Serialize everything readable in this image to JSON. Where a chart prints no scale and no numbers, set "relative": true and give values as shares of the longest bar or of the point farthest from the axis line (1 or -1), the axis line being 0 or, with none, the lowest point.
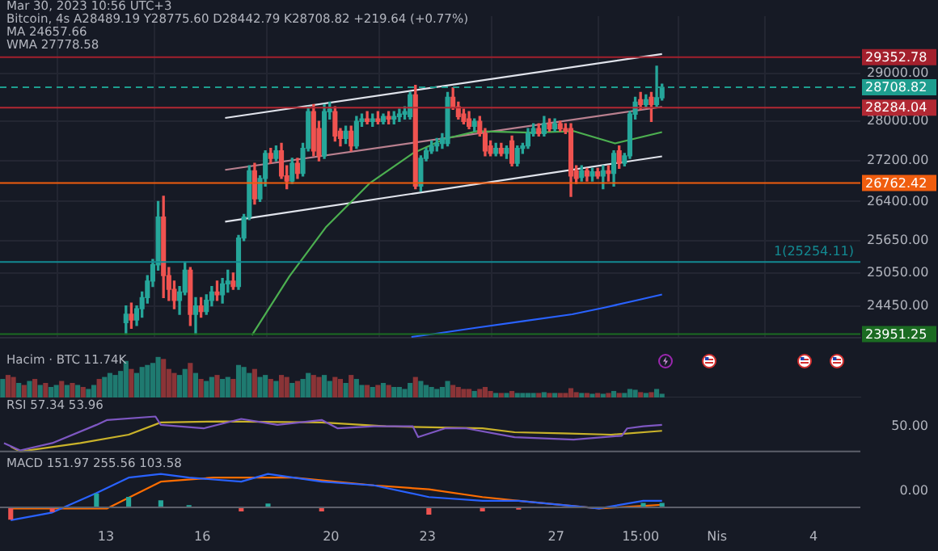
{
  "chart_data": [
    {
      "type": "candlestick",
      "log": true,
      "grid": true,
      "tick_labels": "y",
      "annotations": [
        "Mar 30, 2023 10:56 UTC+3",
        "Bitcoin, 4s  A28489.19 Y28775.60 D28442.79 K28708.82 +219.64 (+0.77%)",
        "MA 24657.66",
        "WMA 27778.58"
      ],
      "xlim": [
        "2023-03-09T17:00",
        "2023-04-05T11:00"
      ],
      "xticks": [
        {
          "value": "2023-03-13",
          "label": null
        },
        {
          "value": "2023-03-16",
          "label": null
        },
        {
          "value": "2023-03-20",
          "label": null
        },
        {
          "value": "2023-03-23",
          "label": null
        },
        {
          "value": "2023-03-27",
          "label": null
        },
        {
          "value": "2023-03-29T15:00",
          "label": null
        },
        {
          "value": "2023-04-01",
          "label": null
        },
        {
          "value": "2023-04-04",
          "label": null
        }
      ],
      "ylim": [
        23880,
        30250
      ],
      "yticks": [
        {
          "value": 24450,
          "label": "24450.00"
        },
        {
          "value": 25050,
          "label": "25050.00"
        },
        {
          "value": 25650,
          "label": "25650.00"
        },
        {
          "value": 26400,
          "label": "26400.00"
        },
        {
          "value": 27200,
          "label": "27200.00"
        },
        {
          "value": 28000,
          "label": "28000.00"
        },
        {
          "value": 29000,
          "label": "29000.00"
        }
      ],
      "x": [
        "2023-03-13T15:00",
        "2023-03-13T19:00",
        "2023-03-13T23:00",
        "2023-03-14T03:00",
        "2023-03-14T07:00",
        "2023-03-14T11:00",
        "2023-03-14T15:00",
        "2023-03-14T19:00",
        "2023-03-14T23:00",
        "2023-03-15T03:00",
        "2023-03-15T07:00",
        "2023-03-15T11:00",
        "2023-03-15T15:00",
        "2023-03-15T19:00",
        "2023-03-15T23:00",
        "2023-03-16T03:00",
        "2023-03-16T07:00",
        "2023-03-16T11:00",
        "2023-03-16T15:00",
        "2023-03-16T19:00",
        "2023-03-16T23:00",
        "2023-03-17T03:00",
        "2023-03-17T07:00",
        "2023-03-17T11:00",
        "2023-03-17T15:00",
        "2023-03-17T19:00",
        "2023-03-17T23:00",
        "2023-03-18T03:00",
        "2023-03-18T07:00",
        "2023-03-18T11:00",
        "2023-03-18T15:00",
        "2023-03-18T19:00",
        "2023-03-18T23:00",
        "2023-03-19T03:00",
        "2023-03-19T07:00",
        "2023-03-19T11:00",
        "2023-03-19T15:00",
        "2023-03-19T19:00",
        "2023-03-19T23:00",
        "2023-03-20T03:00",
        "2023-03-20T07:00",
        "2023-03-20T11:00",
        "2023-03-20T15:00",
        "2023-03-20T19:00",
        "2023-03-20T23:00",
        "2023-03-21T03:00",
        "2023-03-21T07:00",
        "2023-03-21T11:00",
        "2023-03-21T15:00",
        "2023-03-21T19:00",
        "2023-03-21T23:00",
        "2023-03-22T03:00",
        "2023-03-22T07:00",
        "2023-03-22T11:00",
        "2023-03-22T15:00",
        "2023-03-22T19:00",
        "2023-03-22T23:00",
        "2023-03-23T03:00",
        "2023-03-23T07:00",
        "2023-03-23T11:00",
        "2023-03-23T15:00",
        "2023-03-23T19:00",
        "2023-03-23T23:00",
        "2023-03-24T03:00",
        "2023-03-24T07:00",
        "2023-03-24T11:00",
        "2023-03-24T15:00",
        "2023-03-24T19:00",
        "2023-03-24T23:00",
        "2023-03-25T03:00",
        "2023-03-25T07:00",
        "2023-03-25T11:00",
        "2023-03-25T15:00",
        "2023-03-25T19:00",
        "2023-03-25T23:00",
        "2023-03-26T03:00",
        "2023-03-26T07:00",
        "2023-03-26T11:00",
        "2023-03-26T15:00",
        "2023-03-26T19:00",
        "2023-03-26T23:00",
        "2023-03-27T03:00",
        "2023-03-27T07:00",
        "2023-03-27T11:00",
        "2023-03-27T15:00",
        "2023-03-27T19:00",
        "2023-03-27T23:00",
        "2023-03-28T03:00",
        "2023-03-28T07:00",
        "2023-03-28T11:00",
        "2023-03-28T15:00",
        "2023-03-28T19:00",
        "2023-03-28T23:00",
        "2023-03-29T03:00",
        "2023-03-29T07:00",
        "2023-03-29T11:00",
        "2023-03-29T15:00",
        "2023-03-29T19:00",
        "2023-03-29T23:00",
        "2023-03-30T03:00",
        "2023-03-30T07:00"
      ],
      "ohlc": [
        [
          24150,
          24450,
          23950,
          24300
        ],
        [
          24300,
          24500,
          24050,
          24200
        ],
        [
          24200,
          24450,
          24100,
          24400
        ],
        [
          24400,
          24700,
          24250,
          24600
        ],
        [
          24600,
          25000,
          24500,
          24900
        ],
        [
          24900,
          25300,
          24800,
          25200
        ],
        [
          25200,
          26400,
          25100,
          26100
        ],
        [
          26100,
          26500,
          24600,
          25000
        ],
        [
          25000,
          25150,
          24550,
          24750
        ],
        [
          24750,
          24900,
          24400,
          24550
        ],
        [
          24550,
          24800,
          24300,
          24700
        ],
        [
          24700,
          25250,
          24650,
          25100
        ],
        [
          25100,
          25150,
          24100,
          24300
        ],
        [
          24300,
          24600,
          23950,
          24450
        ],
        [
          24450,
          24600,
          24250,
          24350
        ],
        [
          24350,
          24650,
          24300,
          24550
        ],
        [
          24550,
          24800,
          24450,
          24700
        ],
        [
          24700,
          24900,
          24550,
          24650
        ],
        [
          24650,
          24950,
          24500,
          24850
        ],
        [
          24850,
          25100,
          24700,
          24900
        ],
        [
          24900,
          25050,
          24750,
          24800
        ],
        [
          24800,
          25750,
          24750,
          25700
        ],
        [
          25700,
          26150,
          25650,
          26100
        ],
        [
          26100,
          27100,
          26050,
          27000
        ],
        [
          27000,
          27150,
          26350,
          26450
        ],
        [
          26450,
          26900,
          26400,
          26850
        ],
        [
          26850,
          27400,
          26700,
          27350
        ],
        [
          27350,
          27450,
          27150,
          27250
        ],
        [
          27250,
          27500,
          27200,
          27400
        ],
        [
          27400,
          27550,
          26850,
          26900
        ],
        [
          26900,
          27100,
          26650,
          26800
        ],
        [
          26800,
          27250,
          26750,
          27150
        ],
        [
          27150,
          27250,
          26850,
          26950
        ],
        [
          26950,
          27550,
          26900,
          27450
        ],
        [
          27450,
          28300,
          27400,
          28200
        ],
        [
          28200,
          28350,
          27300,
          27400
        ],
        [
          27850,
          28000,
          27200,
          27300
        ],
        [
          27300,
          28350,
          27250,
          28200
        ],
        [
          28200,
          28400,
          28050,
          28250
        ],
        [
          28200,
          28300,
          27600,
          27700
        ],
        [
          27800,
          27850,
          27500,
          27650
        ],
        [
          27650,
          27900,
          27550,
          27800
        ],
        [
          27800,
          27900,
          27400,
          27500
        ],
        [
          27500,
          28100,
          27450,
          28000
        ],
        [
          28000,
          28150,
          27900,
          28050
        ],
        [
          28050,
          28200,
          27950,
          28000
        ],
        [
          28000,
          28150,
          27900,
          28050
        ],
        [
          28050,
          28200,
          27950,
          28000
        ],
        [
          28000,
          28150,
          27950,
          28100
        ],
        [
          28100,
          28200,
          27950,
          28050
        ],
        [
          28050,
          28200,
          27950,
          28100
        ],
        [
          28100,
          28250,
          28000,
          28150
        ],
        [
          28150,
          28300,
          28050,
          28200
        ],
        [
          28100,
          28600,
          28050,
          28550
        ],
        [
          28550,
          28750,
          26650,
          26700
        ],
        [
          26700,
          27300,
          26600,
          27250
        ],
        [
          27250,
          27450,
          27200,
          27400
        ],
        [
          27400,
          27600,
          27350,
          27500
        ],
        [
          27500,
          27650,
          27400,
          27550
        ],
        [
          27550,
          27750,
          27450,
          27650
        ],
        [
          27550,
          28600,
          27500,
          28500
        ],
        [
          28500,
          28700,
          28250,
          28300
        ],
        [
          28300,
          28400,
          28050,
          28100
        ],
        [
          28150,
          28250,
          27950,
          28000
        ],
        [
          28050,
          28200,
          27850,
          27900
        ],
        [
          27900,
          28050,
          27800,
          28000
        ],
        [
          28000,
          28100,
          27700,
          27750
        ],
        [
          27750,
          27850,
          27300,
          27400
        ],
        [
          27500,
          27600,
          27300,
          27350
        ],
        [
          27350,
          27550,
          27300,
          27450
        ],
        [
          27450,
          27550,
          27300,
          27350
        ],
        [
          27350,
          27500,
          27250,
          27450
        ],
        [
          27600,
          27700,
          27100,
          27150
        ],
        [
          27150,
          27500,
          27100,
          27450
        ],
        [
          27450,
          27550,
          27350,
          27500
        ],
        [
          27500,
          27850,
          27450,
          27750
        ],
        [
          27750,
          27950,
          27700,
          27850
        ],
        [
          27850,
          27950,
          27700,
          27750
        ],
        [
          27750,
          28100,
          27700,
          27950
        ],
        [
          27950,
          28050,
          27800,
          27850
        ],
        [
          27850,
          28050,
          27800,
          27950
        ],
        [
          27950,
          28000,
          27800,
          27850
        ],
        [
          27850,
          27950,
          27750,
          27800
        ],
        [
          27850,
          27950,
          26500,
          26900
        ],
        [
          27000,
          27100,
          26750,
          26850
        ],
        [
          26870,
          27100,
          26800,
          27000
        ],
        [
          27000,
          27050,
          26800,
          26900
        ],
        [
          26900,
          27050,
          26800,
          26980
        ],
        [
          26980,
          27050,
          26850,
          26900
        ],
        [
          26900,
          27100,
          26650,
          27000
        ],
        [
          27000,
          27100,
          26800,
          26950
        ],
        [
          26950,
          27400,
          26700,
          27350
        ],
        [
          27400,
          27500,
          27050,
          27150
        ],
        [
          27150,
          27350,
          27100,
          27300
        ],
        [
          27300,
          28200,
          27250,
          28150
        ],
        [
          28150,
          28500,
          28050,
          28400
        ],
        [
          28450,
          28600,
          28250,
          28350
        ],
        [
          28350,
          28550,
          28300,
          28450
        ],
        [
          28500,
          28600,
          28000,
          28350
        ],
        [
          28350,
          29160,
          28300,
          28490
        ],
        [
          28489.19,
          28775.6,
          28442.79,
          28708.82
        ]
      ],
      "colors": [
        "#26a69a",
        "#ef5350",
        "#26a69a",
        "#26a69a",
        "#26a69a",
        "#26a69a",
        "#26a69a",
        "#ef5350",
        "#ef5350",
        "#ef5350",
        "#26a69a",
        "#26a69a",
        "#ef5350",
        "#26a69a",
        "#ef5350",
        "#26a69a",
        "#26a69a",
        "#ef5350",
        "#26a69a",
        "#26a69a",
        "#ef5350",
        "#26a69a",
        "#26a69a",
        "#26a69a",
        "#ef5350",
        "#26a69a",
        "#26a69a",
        "#ef5350",
        "#26a69a",
        "#ef5350",
        "#ef5350",
        "#26a69a",
        "#ef5350",
        "#26a69a",
        "#26a69a",
        "#ef5350",
        "#ef5350",
        "#26a69a",
        "#26a69a",
        "#ef5350",
        "#ef5350",
        "#26a69a",
        "#ef5350",
        "#26a69a",
        "#26a69a",
        "#ef5350",
        "#26a69a",
        "#ef5350",
        "#26a69a",
        "#ef5350",
        "#26a69a",
        "#26a69a",
        "#26a69a",
        "#26a69a",
        "#ef5350",
        "#26a69a",
        "#26a69a",
        "#26a69a",
        "#26a69a",
        "#26a69a",
        "#26a69a",
        "#ef5350",
        "#ef5350",
        "#ef5350",
        "#ef5350",
        "#26a69a",
        "#ef5350",
        "#ef5350",
        "#ef5350",
        "#26a69a",
        "#ef5350",
        "#26a69a",
        "#ef5350",
        "#26a69a",
        "#26a69a",
        "#26a69a",
        "#26a69a",
        "#ef5350",
        "#26a69a",
        "#ef5350",
        "#26a69a",
        "#ef5350",
        "#ef5350",
        "#ef5350",
        "#ef5350",
        "#26a69a",
        "#ef5350",
        "#26a69a",
        "#ef5350",
        "#26a69a",
        "#ef5350",
        "#26a69a",
        "#ef5350",
        "#26a69a",
        "#26a69a",
        "#26a69a",
        "#ef5350",
        "#26a69a",
        "#ef5350",
        "#26a69a",
        "#26a69a"
      ],
      "series": [
        {
          "type": "line",
          "color": "#2962ff",
          "x": [
            "2023-03-22T12:00",
            "2023-03-23T04:00",
            "2023-03-24T12:00",
            "2023-03-26T00:00",
            "2023-03-27T12:00",
            "2023-03-28T12:00",
            "2023-03-29T12:00",
            "2023-03-30T07:00"
          ],
          "values": [
            23900,
            23950,
            24060,
            24180,
            24300,
            24420,
            24550,
            24657
          ]
        },
        {
          "type": "line",
          "color": "#4caf50",
          "x": [
            "2023-03-17T13:00",
            "2023-03-18T17:00",
            "2023-03-19T20:00",
            "2023-03-21T05:00",
            "2023-03-22T13:00",
            "2023-03-23T13:00",
            "2023-03-24T13:00",
            "2023-03-26T05:00",
            "2023-03-27T13:00",
            "2023-03-28T20:00",
            "2023-03-30T07:00"
          ],
          "values": [
            23930,
            24990,
            25900,
            26760,
            27350,
            27645,
            27800,
            27770,
            27800,
            27550,
            27780
          ]
        },
        {
          "type": "line",
          "color": "#e0e3eb",
          "x": [
            "2023-03-16T17:00",
            "2023-03-30T07:00"
          ],
          "values": [
            28070,
            29420
          ]
        },
        {
          "type": "line",
          "color": "#b9808f",
          "x": [
            "2023-03-16T17:00",
            "2023-03-30T07:00"
          ],
          "values": [
            27020,
            28300
          ]
        },
        {
          "type": "line",
          "color": "#e0e3eb",
          "x": [
            "2023-03-16T17:00",
            "2023-03-30T07:00"
          ],
          "values": [
            26010,
            27290
          ]
        }
      ],
      "ref_lines": [
        {
          "axis": "y",
          "value": 29352.78,
          "label": "29352.78",
          "color": "#a3202d"
        },
        {
          "axis": "y",
          "value": 28708.82,
          "label": "28708.82",
          "color": "#1e9e8f",
          "line_style": "dashed"
        },
        {
          "axis": "y",
          "value": 28284.04,
          "label": "28284.04",
          "color": "#b22833"
        },
        {
          "axis": "y",
          "value": 26762.42,
          "label": "26762.42",
          "color": "#f05d0e"
        },
        {
          "axis": "y",
          "value": 25254.11,
          "label": "1(25254.11)",
          "color": "#138a92"
        },
        {
          "axis": "y",
          "value": 23951.25,
          "label": "23951.25",
          "color": "#1b6b22"
        }
      ]
    },
    {
      "type": "bar",
      "relative": true,
      "tick_labels": false,
      "annotations": [
        "Hacim · BTC 11.74K"
      ],
      "xlim": [
        "2023-03-09T17:00",
        "2023-04-05T11:00"
      ],
      "x": [
        "2023-03-09T19:00",
        "2023-03-09T23:00",
        "2023-03-10T03:00",
        "2023-03-10T07:00",
        "2023-03-10T11:00",
        "2023-03-10T15:00",
        "2023-03-10T19:00",
        "2023-03-10T23:00",
        "2023-03-11T03:00",
        "2023-03-11T07:00",
        "2023-03-11T11:00",
        "2023-03-11T15:00",
        "2023-03-11T19:00",
        "2023-03-11T23:00",
        "2023-03-12T03:00",
        "2023-03-12T07:00",
        "2023-03-12T11:00",
        "2023-03-12T15:00",
        "2023-03-12T19:00",
        "2023-03-12T23:00",
        "2023-03-13T03:00",
        "2023-03-13T07:00",
        "2023-03-13T11:00",
        "2023-03-13T15:00",
        "2023-03-13T19:00",
        "2023-03-13T23:00",
        "2023-03-14T03:00",
        "2023-03-14T07:00",
        "2023-03-14T11:00",
        "2023-03-14T15:00",
        "2023-03-14T19:00",
        "2023-03-14T23:00",
        "2023-03-15T03:00",
        "2023-03-15T07:00",
        "2023-03-15T11:00",
        "2023-03-15T15:00",
        "2023-03-15T19:00",
        "2023-03-15T23:00",
        "2023-03-16T03:00",
        "2023-03-16T07:00",
        "2023-03-16T11:00",
        "2023-03-16T15:00",
        "2023-03-16T19:00",
        "2023-03-16T23:00",
        "2023-03-17T03:00",
        "2023-03-17T07:00",
        "2023-03-17T11:00",
        "2023-03-17T15:00",
        "2023-03-17T19:00",
        "2023-03-17T23:00",
        "2023-03-18T03:00",
        "2023-03-18T07:00",
        "2023-03-18T11:00",
        "2023-03-18T15:00",
        "2023-03-18T19:00",
        "2023-03-18T23:00",
        "2023-03-19T03:00",
        "2023-03-19T07:00",
        "2023-03-19T11:00",
        "2023-03-19T15:00",
        "2023-03-19T19:00",
        "2023-03-19T23:00",
        "2023-03-20T03:00",
        "2023-03-20T07:00",
        "2023-03-20T11:00",
        "2023-03-20T15:00",
        "2023-03-20T19:00",
        "2023-03-20T23:00",
        "2023-03-21T03:00",
        "2023-03-21T07:00",
        "2023-03-21T11:00",
        "2023-03-21T15:00",
        "2023-03-21T19:00",
        "2023-03-21T23:00",
        "2023-03-22T03:00",
        "2023-03-22T07:00",
        "2023-03-22T11:00",
        "2023-03-22T15:00",
        "2023-03-22T19:00",
        "2023-03-22T23:00",
        "2023-03-23T03:00",
        "2023-03-23T07:00",
        "2023-03-23T11:00",
        "2023-03-23T15:00",
        "2023-03-23T19:00",
        "2023-03-23T23:00",
        "2023-03-24T03:00",
        "2023-03-24T07:00",
        "2023-03-24T11:00",
        "2023-03-24T15:00",
        "2023-03-24T19:00",
        "2023-03-24T23:00",
        "2023-03-25T03:00",
        "2023-03-25T07:00",
        "2023-03-25T11:00",
        "2023-03-25T15:00",
        "2023-03-25T19:00",
        "2023-03-25T23:00",
        "2023-03-26T03:00",
        "2023-03-26T07:00",
        "2023-03-26T11:00",
        "2023-03-26T15:00",
        "2023-03-26T19:00",
        "2023-03-26T23:00",
        "2023-03-27T03:00",
        "2023-03-27T07:00",
        "2023-03-27T11:00",
        "2023-03-27T15:00",
        "2023-03-27T19:00",
        "2023-03-27T23:00",
        "2023-03-28T03:00",
        "2023-03-28T07:00",
        "2023-03-28T11:00",
        "2023-03-28T15:00",
        "2023-03-28T19:00",
        "2023-03-28T23:00",
        "2023-03-29T03:00",
        "2023-03-29T07:00",
        "2023-03-29T11:00",
        "2023-03-29T15:00",
        "2023-03-29T19:00",
        "2023-03-29T23:00",
        "2023-03-30T03:00",
        "2023-03-30T07:00"
      ],
      "values": [
        0.45,
        0.55,
        0.5,
        0.35,
        0.3,
        0.4,
        0.45,
        0.3,
        0.35,
        0.25,
        0.3,
        0.4,
        0.3,
        0.35,
        0.3,
        0.25,
        0.2,
        0.3,
        0.45,
        0.5,
        0.6,
        0.55,
        0.65,
        0.9,
        0.7,
        0.6,
        0.75,
        0.8,
        0.85,
        1.0,
        0.95,
        0.7,
        0.6,
        0.55,
        0.7,
        0.85,
        0.6,
        0.45,
        0.4,
        0.5,
        0.55,
        0.45,
        0.5,
        0.45,
        0.8,
        0.75,
        0.6,
        0.7,
        0.5,
        0.55,
        0.45,
        0.4,
        0.55,
        0.5,
        0.35,
        0.4,
        0.45,
        0.6,
        0.55,
        0.5,
        0.55,
        0.4,
        0.5,
        0.45,
        0.35,
        0.55,
        0.45,
        0.3,
        0.3,
        0.25,
        0.3,
        0.35,
        0.3,
        0.25,
        0.25,
        0.2,
        0.35,
        0.5,
        0.4,
        0.3,
        0.25,
        0.2,
        0.25,
        0.4,
        0.3,
        0.25,
        0.2,
        0.2,
        0.15,
        0.2,
        0.25,
        0.15,
        0.1,
        0.1,
        0.1,
        0.15,
        0.1,
        0.1,
        0.1,
        0.1,
        0.1,
        0.12,
        0.1,
        0.1,
        0.1,
        0.1,
        0.22,
        0.12,
        0.1,
        0.1,
        0.08,
        0.1,
        0.08,
        0.1,
        0.15,
        0.1,
        0.1,
        0.2,
        0.18,
        0.12,
        0.1,
        0.12,
        0.2,
        0.08
      ],
      "colors": [
        "#1f7a70",
        "#8a3437",
        "#8a3437",
        "#1f7a70",
        "#8a3437",
        "#1f7a70",
        "#8a3437",
        "#1f7a70",
        "#8a3437",
        "#1f7a70",
        "#1f7a70",
        "#8a3437",
        "#1f7a70",
        "#8a3437",
        "#1f7a70",
        "#8a3437",
        "#1f7a70",
        "#1f7a70",
        "#8a3437",
        "#1f7a70",
        "#1f7a70",
        "#1f7a70",
        "#1f7a70",
        "#1f7a70",
        "#8a3437",
        "#1f7a70",
        "#1f7a70",
        "#1f7a70",
        "#1f7a70",
        "#1f7a70",
        "#8a3437",
        "#8a3437",
        "#8a3437",
        "#1f7a70",
        "#1f7a70",
        "#8a3437",
        "#1f7a70",
        "#8a3437",
        "#1f7a70",
        "#1f7a70",
        "#8a3437",
        "#1f7a70",
        "#1f7a70",
        "#8a3437",
        "#1f7a70",
        "#1f7a70",
        "#1f7a70",
        "#8a3437",
        "#1f7a70",
        "#1f7a70",
        "#8a3437",
        "#1f7a70",
        "#8a3437",
        "#8a3437",
        "#1f7a70",
        "#8a3437",
        "#1f7a70",
        "#1f7a70",
        "#8a3437",
        "#8a3437",
        "#1f7a70",
        "#1f7a70",
        "#8a3437",
        "#8a3437",
        "#1f7a70",
        "#8a3437",
        "#1f7a70",
        "#1f7a70",
        "#8a3437",
        "#1f7a70",
        "#8a3437",
        "#1f7a70",
        "#8a3437",
        "#1f7a70",
        "#1f7a70",
        "#1f7a70",
        "#1f7a70",
        "#8a3437",
        "#1f7a70",
        "#1f7a70",
        "#1f7a70",
        "#1f7a70",
        "#1f7a70",
        "#1f7a70",
        "#8a3437",
        "#8a3437",
        "#8a3437",
        "#8a3437",
        "#1f7a70",
        "#8a3437",
        "#8a3437",
        "#8a3437",
        "#1f7a70",
        "#8a3437",
        "#1f7a70",
        "#8a3437",
        "#1f7a70",
        "#1f7a70",
        "#1f7a70",
        "#1f7a70",
        "#8a3437",
        "#1f7a70",
        "#8a3437",
        "#1f7a70",
        "#8a3437",
        "#8a3437",
        "#8a3437",
        "#8a3437",
        "#1f7a70",
        "#8a3437",
        "#1f7a70",
        "#8a3437",
        "#1f7a70",
        "#8a3437",
        "#1f7a70",
        "#8a3437",
        "#1f7a70",
        "#1f7a70",
        "#1f7a70",
        "#8a3437",
        "#1f7a70",
        "#8a3437",
        "#1f7a70",
        "#1f7a70"
      ]
    },
    {
      "type": "line",
      "relative": true,
      "tick_labels": false,
      "annotations": [
        "RSI 57.34 53.96",
        "50.00"
      ],
      "xlim": [
        "2023-03-09T17:00",
        "2023-04-05T11:00"
      ],
      "series": [
        {
          "color": "#7e57c2",
          "x": [
            "2023-03-09T20:00",
            "2023-03-10T08:00",
            "2023-03-11T08:00",
            "2023-03-12T17:00",
            "2023-03-13T01:00",
            "2023-03-14T13:00",
            "2023-03-14T17:00",
            "2023-03-16T01:00",
            "2023-03-17T05:00",
            "2023-03-18T08:00",
            "2023-03-19T17:00",
            "2023-03-20T05:00",
            "2023-03-21T08:00",
            "2023-03-22T13:00",
            "2023-03-22T17:00",
            "2023-03-23T13:00",
            "2023-03-24T05:00",
            "2023-03-25T17:00",
            "2023-03-27T13:00",
            "2023-03-29T01:00",
            "2023-03-29T05:00",
            "2023-03-29T17:00",
            "2023-03-30T07:00"
          ],
          "values": [
            0.24,
            0.03,
            0.24,
            0.76,
            0.9,
            1,
            0.76,
            0.66,
            0.93,
            0.76,
            0.9,
            0.66,
            0.72,
            0.72,
            0.41,
            0.66,
            0.66,
            0.41,
            0.34,
            0.45,
            0.66,
            0.72,
            0.76
          ]
        },
        {
          "color": "#c9b22a",
          "x": [
            "2023-03-10T01:00",
            "2023-03-10T08:00",
            "2023-03-12T05:00",
            "2023-03-13T17:00",
            "2023-03-14T17:00",
            "2023-03-16T17:00",
            "2023-03-19T17:00",
            "2023-03-21T17:00",
            "2023-03-24T17:00",
            "2023-03-25T17:00",
            "2023-03-27T05:00",
            "2023-03-28T17:00",
            "2023-03-30T07:00"
          ],
          "values": [
            0.14,
            0,
            0.24,
            0.48,
            0.83,
            0.86,
            0.83,
            0.72,
            0.66,
            0.55,
            0.52,
            0.48,
            0.59
          ]
        }
      ],
      "grid": false
    },
    {
      "type": "line",
      "relative": true,
      "tick_labels": "x",
      "annotations": [
        "MACD 151.97 255.56 103.58",
        "0.00"
      ],
      "xlim": [
        "2023-03-09T17:00",
        "2023-04-05T11:00"
      ],
      "xticks": [
        {
          "value": "2023-03-13",
          "label": "13"
        },
        {
          "value": "2023-03-16",
          "label": "16"
        },
        {
          "value": "2023-03-20",
          "label": "20"
        },
        {
          "value": "2023-03-23",
          "label": "23"
        },
        {
          "value": "2023-03-27",
          "label": "27"
        },
        {
          "value": "2023-03-29T15:00",
          "label": "15:00"
        },
        {
          "value": "2023-04-01",
          "label": "Nis"
        },
        {
          "value": "2023-04-04",
          "label": "4"
        }
      ],
      "series": [
        {
          "type": "bar",
          "x": [
            "2023-03-10T01:00",
            "2023-03-11T08:00",
            "2023-03-12T17:00",
            "2023-03-13T17:00",
            "2023-03-14T17:00",
            "2023-03-15T14:00",
            "2023-03-17T05:00",
            "2023-03-18T01:00",
            "2023-03-19T17:00",
            "2023-03-21T08:00",
            "2023-03-23T01:00",
            "2023-03-24T17:00",
            "2023-03-25T20:00",
            "2023-03-28T08:00",
            "2023-03-29T17:00",
            "2023-03-30T07:00"
          ],
          "values": [
            -0.35,
            -0.12,
            0.4,
            0.3,
            0.2,
            0.05,
            -0.1,
            0.1,
            -0.1,
            null,
            -0.2,
            -0.1,
            -0.05,
            null,
            0.12,
            0.12
          ],
          "colors": [
            "#ef5350",
            "#ef5350",
            "#26a69a",
            "#26a69a",
            "#26a69a",
            "#26a69a",
            "#ef5350",
            "#26a69a",
            "#ef5350",
            "#26a69a",
            "#ef5350",
            "#ef5350",
            "#ef5350",
            "#ef5350",
            "#26a69a",
            "#26a69a"
          ]
        },
        {
          "color": "#2962ff",
          "x": [
            "2023-03-10T01:00",
            "2023-03-11T08:00",
            "2023-03-12T17:00",
            "2023-03-13T17:00",
            "2023-03-14T17:00",
            "2023-03-15T14:00",
            "2023-03-17T05:00",
            "2023-03-18T01:00",
            "2023-03-19T17:00",
            "2023-03-21T08:00",
            "2023-03-23T01:00",
            "2023-03-24T17:00",
            "2023-03-25T20:00",
            "2023-03-28T08:00",
            "2023-03-29T17:00",
            "2023-03-30T07:00"
          ],
          "values": [
            -0.38,
            -0.15,
            0.43,
            0.89,
            1,
            0.89,
            0.77,
            1,
            0.77,
            0.66,
            0.31,
            0.2,
            0.2,
            -0.03,
            0.2,
            0.2
          ]
        },
        {
          "color": "#ff6d00",
          "x": [
            "2023-03-10T01:00",
            "2023-03-13T01:00",
            "2023-03-14T17:00",
            "2023-03-16T08:00",
            "2023-03-18T20:00",
            "2023-03-21T08:00",
            "2023-03-23T01:00",
            "2023-03-24T17:00",
            "2023-03-25T20:00",
            "2023-03-28T08:00",
            "2023-03-30T07:00"
          ],
          "values": [
            -0.03,
            -0.03,
            0.77,
            0.89,
            0.89,
            0.66,
            0.54,
            0.31,
            0.2,
            -0.03,
            0.08
          ]
        }
      ],
      "grid": false
    }
  ]
}
